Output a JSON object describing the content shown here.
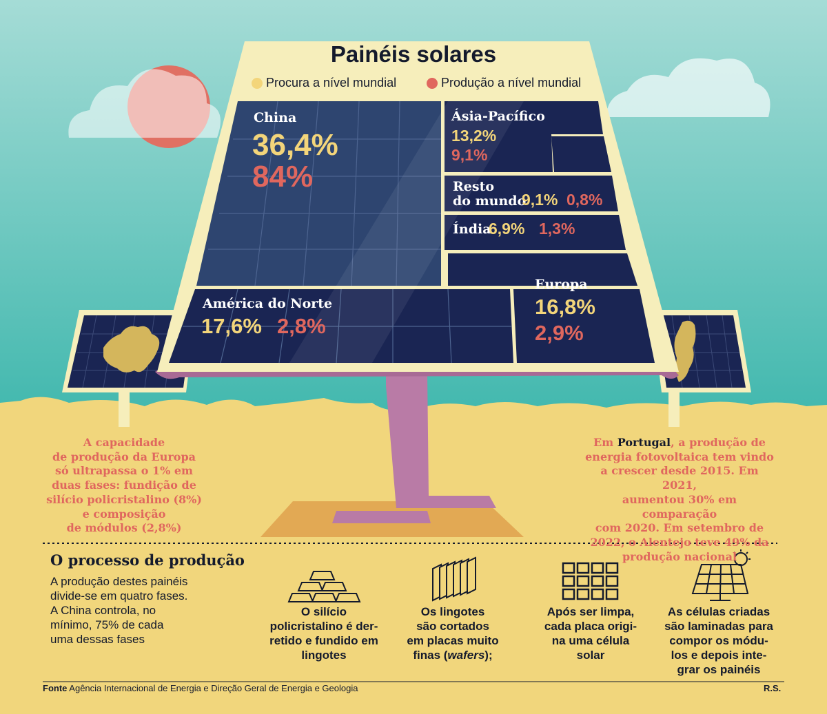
{
  "title": "Painéis solares",
  "legend": {
    "demand": "Procura a nível mundial",
    "production": "Produção a nível mundial",
    "demand_color": "#f3d57a",
    "production_color": "#e0675e"
  },
  "regions": {
    "china": {
      "name": "China",
      "demand": "36,4%",
      "production": "84%"
    },
    "asia_pacific": {
      "name": "Ásia-Pacífico",
      "demand": "13,2%",
      "production": "9,1%"
    },
    "rest_of_world": {
      "name_line1": "Resto",
      "name_line2": "do mundo",
      "demand": "9,1%",
      "production": "0,8%"
    },
    "india": {
      "name": "Índia",
      "demand": "6,9%",
      "production": "1,3%"
    },
    "north_america": {
      "name": "América do Norte",
      "demand": "17,6%",
      "production": "2,8%"
    },
    "europe": {
      "name": "Europa",
      "demand": "16,8%",
      "production": "2,9%"
    }
  },
  "notes": {
    "europe": [
      "A capacidade",
      "de produção da Europa",
      "só ultrapassa o 1% em",
      "duas fases: fundição de",
      "silício policristalino (8%)",
      "e composição",
      "de módulos (2,8%)"
    ],
    "portugal_prefix": "Em",
    "portugal_word": "Portugal",
    "portugal_rest_line1": ", a produção de",
    "portugal": [
      "energia fotovoltaica tem vindo",
      "a crescer desde 2015. Em 2021,",
      "aumentou 30% em comparação",
      "com 2020. Em setembro de",
      "2022, o Alentejo teve 49% da",
      "produção nacional"
    ]
  },
  "process": {
    "heading": "O processo de produção",
    "intro": [
      "A produção destes painéis",
      "divide-se em quatro fases.",
      "A China controla, no",
      "mínimo, 75% de cada",
      "uma dessas fases"
    ],
    "steps": [
      {
        "icon": "gold-ingots-icon",
        "lines": [
          "O silício",
          "policristalino é der-",
          "retido e fundido em",
          "lingotes"
        ]
      },
      {
        "icon": "wafers-icon",
        "lines": [
          "Os lingotes",
          "são cortados",
          "em placas muito"
        ],
        "last_prefix": "finas (",
        "last_italic": "wafers",
        "last_suffix": ");"
      },
      {
        "icon": "solar-cells-grid-icon",
        "lines": [
          "Após ser limpa,",
          "cada placa origi-",
          "na uma célula",
          "solar"
        ]
      },
      {
        "icon": "solar-panel-sun-icon",
        "lines": [
          "As células criadas",
          "são laminadas para",
          "compor os módu-",
          "los e depois inte-",
          "grar os painéis"
        ]
      }
    ]
  },
  "footer": {
    "source_label": "Fonte",
    "source_text": "Agência Internacional de Energia e Direção Geral de Energia e Geologia",
    "credit": "R.S."
  },
  "colors": {
    "sky": "#86d3cb",
    "sand": "#f1d67c",
    "panel_frame": "#f6eebb",
    "panel_cells": "#1a2553",
    "pole": "#b97ba6",
    "sun": "#e07063",
    "text_dark": "#141a2c"
  }
}
